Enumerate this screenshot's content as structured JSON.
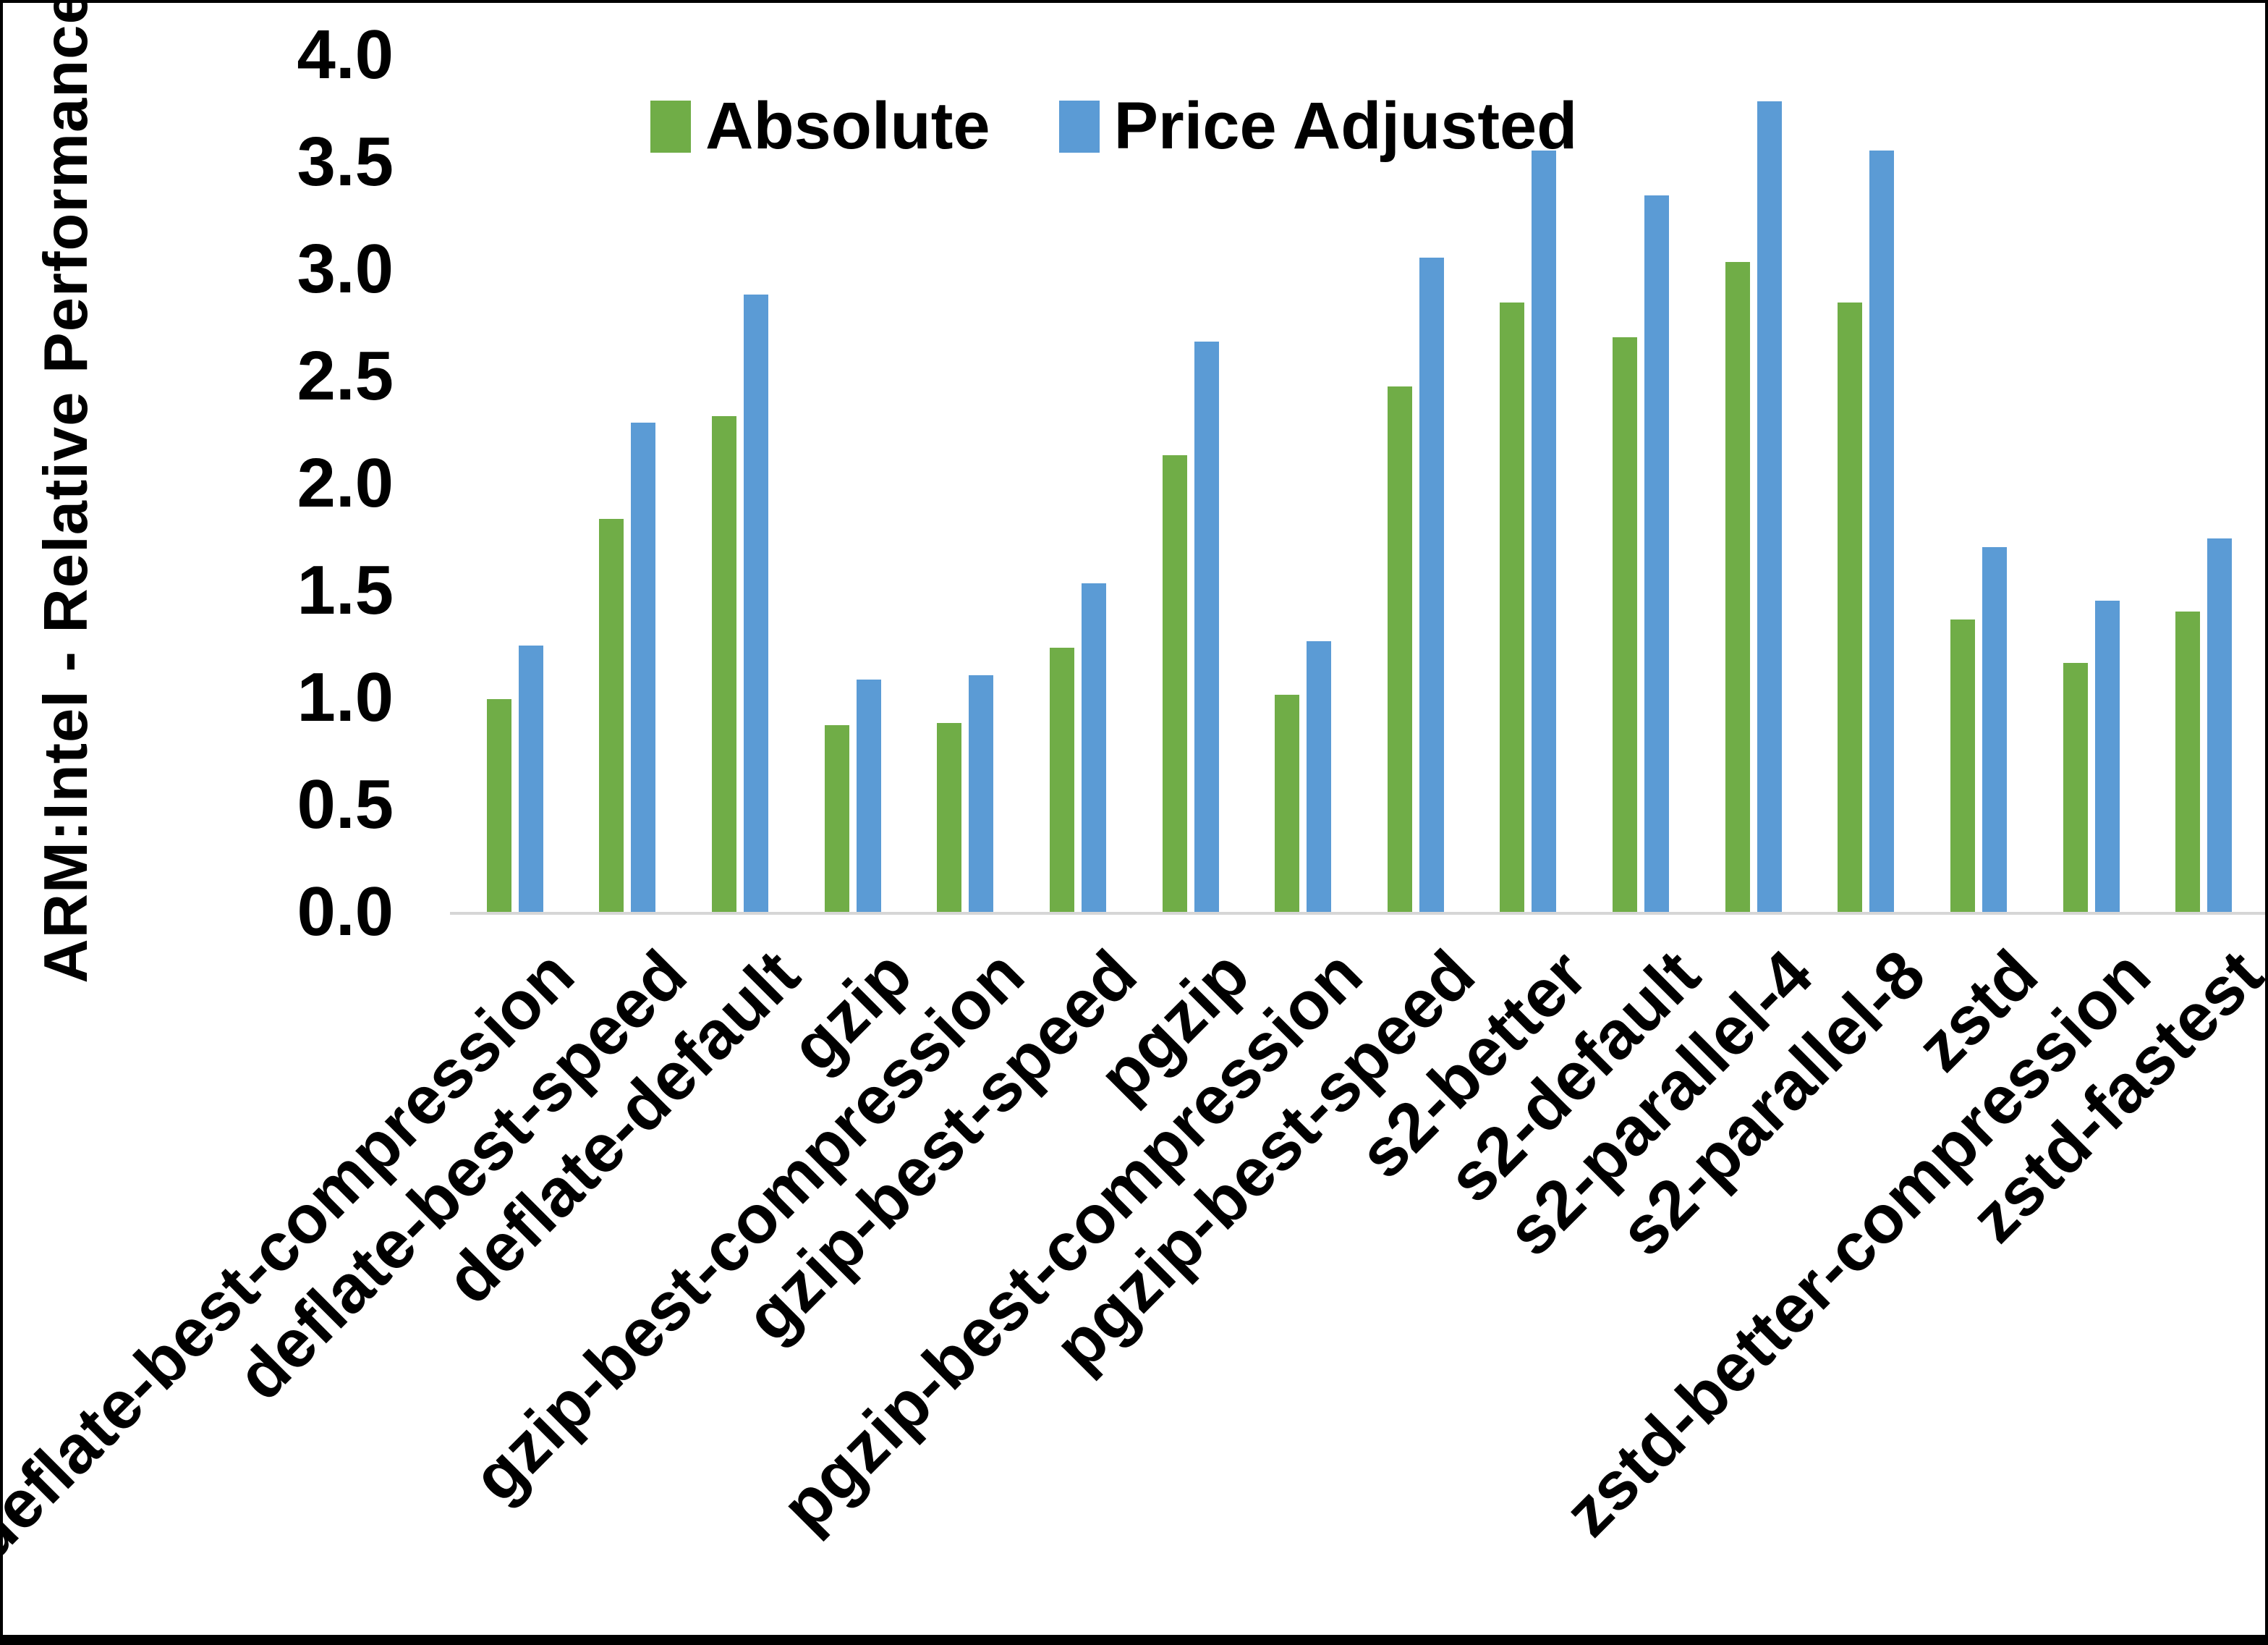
{
  "chart_data": {
    "type": "bar",
    "title": "",
    "ylabel": "ARM:Intel - Relative Performance",
    "xlabel": "",
    "ylim": [
      0.0,
      4.0
    ],
    "ytick_labels": [
      "0.0",
      "0.5",
      "1.0",
      "1.5",
      "2.0",
      "2.5",
      "3.0",
      "3.5",
      "4.0"
    ],
    "grid": false,
    "legend_position": "top-center",
    "categories": [
      "deflate-best-compression",
      "deflate-best-speed",
      "deflate-default",
      "gzip",
      "gzip-best-compression",
      "gzip-best-speed",
      "pgzip",
      "pgzip-best-compression",
      "pgzip-best-speed",
      "s2-better",
      "s2-default",
      "s2-parallel-4",
      "s2-parallel-8",
      "zstd",
      "zstd-better-compression",
      "zstd-fastest"
    ],
    "series": [
      {
        "name": "Absolute",
        "color": "#70AD47",
        "values": [
          1.0,
          1.84,
          2.32,
          0.88,
          0.89,
          1.24,
          2.14,
          1.02,
          2.46,
          2.85,
          2.69,
          3.04,
          2.85,
          1.37,
          1.17,
          1.41
        ]
      },
      {
        "name": "Price Adjusted",
        "color": "#5B9BD5",
        "values": [
          1.25,
          2.29,
          2.89,
          1.09,
          1.11,
          1.54,
          2.67,
          1.27,
          3.06,
          3.56,
          3.35,
          3.79,
          3.56,
          1.71,
          1.46,
          1.75
        ]
      }
    ]
  },
  "colors": {
    "background": "#ffffff",
    "frame_border": "#000000",
    "axis_line": "#d6d6d6",
    "text": "#000000"
  }
}
